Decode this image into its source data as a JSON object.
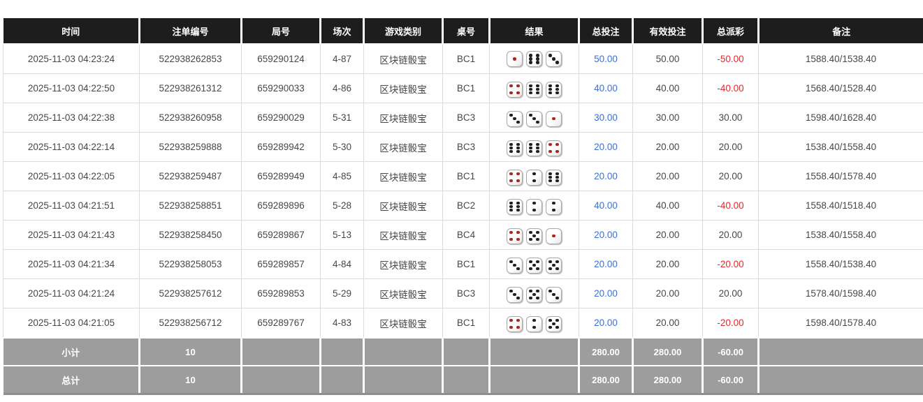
{
  "colors": {
    "header_bg": "#1d1d1d",
    "footer_bg": "#9d9d9d",
    "total_bet_blue": "#3a6fd8",
    "negative_red": "#e02b2b",
    "pip_red": "#b42318",
    "pip_black": "#1f1f1f"
  },
  "table": {
    "headers": [
      "时间",
      "注单编号",
      "局号",
      "场次",
      "游戏类别",
      "桌号",
      "结果",
      "总投注",
      "有效投注",
      "总派彩",
      "备注"
    ],
    "rows": [
      {
        "time": "2025-11-03 04:23:24",
        "bet_id": "522938262853",
        "round_id": "659290124",
        "session": "4-87",
        "game": "区块链骰宝",
        "table_no": "BC1",
        "dice": [
          1,
          6,
          3
        ],
        "total_bet": "50.00",
        "valid_bet": "50.00",
        "payout": "-50.00",
        "remark": "1588.40/1538.40"
      },
      {
        "time": "2025-11-03 04:22:50",
        "bet_id": "522938261312",
        "round_id": "659290033",
        "session": "4-86",
        "game": "区块链骰宝",
        "table_no": "BC1",
        "dice": [
          4,
          6,
          6
        ],
        "total_bet": "40.00",
        "valid_bet": "40.00",
        "payout": "-40.00",
        "remark": "1568.40/1528.40"
      },
      {
        "time": "2025-11-03 04:22:38",
        "bet_id": "522938260958",
        "round_id": "659290029",
        "session": "5-31",
        "game": "区块链骰宝",
        "table_no": "BC3",
        "dice": [
          3,
          3,
          1
        ],
        "total_bet": "30.00",
        "valid_bet": "30.00",
        "payout": "30.00",
        "remark": "1598.40/1628.40"
      },
      {
        "time": "2025-11-03 04:22:14",
        "bet_id": "522938259888",
        "round_id": "659289942",
        "session": "5-30",
        "game": "区块链骰宝",
        "table_no": "BC3",
        "dice": [
          6,
          6,
          4
        ],
        "total_bet": "20.00",
        "valid_bet": "20.00",
        "payout": "20.00",
        "remark": "1538.40/1558.40"
      },
      {
        "time": "2025-11-03 04:22:05",
        "bet_id": "522938259487",
        "round_id": "659289949",
        "session": "4-85",
        "game": "区块链骰宝",
        "table_no": "BC1",
        "dice": [
          4,
          2,
          6
        ],
        "total_bet": "20.00",
        "valid_bet": "20.00",
        "payout": "20.00",
        "remark": "1558.40/1578.40"
      },
      {
        "time": "2025-11-03 04:21:51",
        "bet_id": "522938258851",
        "round_id": "659289896",
        "session": "5-28",
        "game": "区块链骰宝",
        "table_no": "BC2",
        "dice": [
          6,
          2,
          2
        ],
        "total_bet": "40.00",
        "valid_bet": "40.00",
        "payout": "-40.00",
        "remark": "1558.40/1518.40"
      },
      {
        "time": "2025-11-03 04:21:43",
        "bet_id": "522938258450",
        "round_id": "659289867",
        "session": "5-13",
        "game": "区块链骰宝",
        "table_no": "BC4",
        "dice": [
          4,
          5,
          1
        ],
        "total_bet": "20.00",
        "valid_bet": "20.00",
        "payout": "20.00",
        "remark": "1538.40/1558.40"
      },
      {
        "time": "2025-11-03 04:21:34",
        "bet_id": "522938258053",
        "round_id": "659289857",
        "session": "4-84",
        "game": "区块链骰宝",
        "table_no": "BC1",
        "dice": [
          3,
          5,
          5
        ],
        "total_bet": "20.00",
        "valid_bet": "20.00",
        "payout": "-20.00",
        "remark": "1558.40/1538.40"
      },
      {
        "time": "2025-11-03 04:21:24",
        "bet_id": "522938257612",
        "round_id": "659289853",
        "session": "5-29",
        "game": "区块链骰宝",
        "table_no": "BC3",
        "dice": [
          3,
          5,
          3
        ],
        "total_bet": "20.00",
        "valid_bet": "20.00",
        "payout": "20.00",
        "remark": "1578.40/1598.40"
      },
      {
        "time": "2025-11-03 04:21:05",
        "bet_id": "522938256712",
        "round_id": "659289767",
        "session": "4-83",
        "game": "区块链骰宝",
        "table_no": "BC1",
        "dice": [
          4,
          2,
          5
        ],
        "total_bet": "20.00",
        "valid_bet": "20.00",
        "payout": "-20.00",
        "remark": "1598.40/1578.40"
      }
    ],
    "footer": [
      {
        "label": "小计",
        "count": "10",
        "total_bet": "280.00",
        "valid_bet": "280.00",
        "payout": "-60.00"
      },
      {
        "label": "总计",
        "count": "10",
        "total_bet": "280.00",
        "valid_bet": "280.00",
        "payout": "-60.00"
      }
    ]
  }
}
